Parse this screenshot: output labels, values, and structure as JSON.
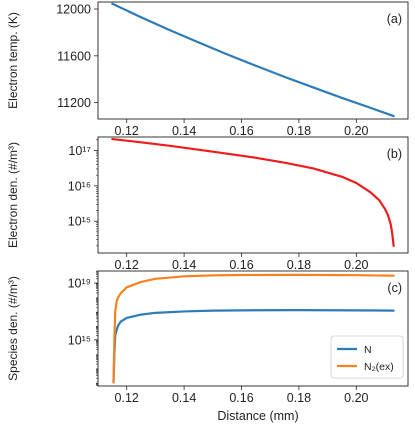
{
  "xlabel": "Distance (mm)",
  "chart_data": [
    {
      "type": "line",
      "panel_label": "(a)",
      "ylabel": "Electron temp. (K)",
      "yscale": "linear",
      "xlim": [
        0.11,
        0.218
      ],
      "ylim": [
        11060,
        12060
      ],
      "xticks": [
        0.12,
        0.14,
        0.16,
        0.18,
        0.2
      ],
      "xtick_labels": [
        "0.12",
        "0.14",
        "0.16",
        "0.18",
        "0.20"
      ],
      "yticks": [
        11200,
        11600,
        12000
      ],
      "ytick_labels": [
        "11200",
        "11600",
        "12000"
      ],
      "series": [
        {
          "color": "#2f7bb7",
          "x": [
            0.115,
            0.125,
            0.135,
            0.145,
            0.155,
            0.165,
            0.175,
            0.185,
            0.195,
            0.205,
            0.213
          ],
          "y": [
            12045,
            11930,
            11820,
            11715,
            11612,
            11515,
            11420,
            11330,
            11240,
            11155,
            11085
          ]
        }
      ]
    },
    {
      "type": "line",
      "panel_label": "(b)",
      "ylabel": "Electron den. (#/m³)",
      "yscale": "log",
      "xlim": [
        0.11,
        0.218
      ],
      "ylim": [
        14.1,
        17.38
      ],
      "xticks": [
        0.12,
        0.14,
        0.16,
        0.18,
        0.2
      ],
      "xtick_labels": [
        "0.12",
        "0.14",
        "0.16",
        "0.18",
        "0.20"
      ],
      "yticks": [
        15,
        16,
        17
      ],
      "ytick_labels": [
        "10¹⁵",
        "10¹⁶",
        "10¹⁷"
      ],
      "series": [
        {
          "color": "#ee1c1c",
          "x": [
            0.115,
            0.125,
            0.135,
            0.145,
            0.155,
            0.165,
            0.175,
            0.185,
            0.195,
            0.2,
            0.205,
            0.208,
            0.21,
            0.211,
            0.212,
            0.2125,
            0.213
          ],
          "y": [
            2.1e+17,
            1.7e+17,
            1.35e+17,
            1.05e+17,
            8.1e+16,
            6.2e+16,
            4.5e+16,
            3.1e+16,
            1.8e+16,
            1.2e+16,
            6500000000000000.0,
            3900000000000000.0,
            2200000000000000.0,
            1500000000000000.0,
            800000000000000.0,
            450000000000000.0,
            200000000000000.0
          ]
        }
      ]
    },
    {
      "type": "line",
      "panel_label": "(c)",
      "ylabel": "Species den. (#/m³)",
      "yscale": "log",
      "xlim": [
        0.11,
        0.218
      ],
      "ylim": [
        11.75,
        19.85
      ],
      "xticks": [
        0.12,
        0.14,
        0.16,
        0.18,
        0.2
      ],
      "xtick_labels": [
        "0.12",
        "0.14",
        "0.16",
        "0.18",
        "0.20"
      ],
      "yticks": [
        15,
        19
      ],
      "ytick_labels": [
        "10¹⁵",
        "10¹⁹"
      ],
      "legend": "lower-right",
      "series": [
        {
          "name": "N",
          "color": "#2f7bb7",
          "x": [
            0.1154,
            0.1157,
            0.116,
            0.1165,
            0.117,
            0.118,
            0.12,
            0.125,
            0.13,
            0.14,
            0.15,
            0.16,
            0.18,
            0.2,
            0.213
          ],
          "y": [
            1000000000000.0,
            100000000000000.0,
            2000000000000000.0,
            5000000000000000.0,
            1e+16,
            2e+16,
            3.5e+16,
            6e+16,
            8e+16,
            1e+17,
            1.15e+17,
            1.2e+17,
            1.25e+17,
            1.2e+17,
            1.15e+17
          ]
        },
        {
          "name": "N₂(ex)",
          "color": "#f58220",
          "x": [
            0.1154,
            0.1157,
            0.116,
            0.1165,
            0.117,
            0.118,
            0.12,
            0.125,
            0.13,
            0.14,
            0.15,
            0.16,
            0.18,
            0.2,
            0.213
          ],
          "y": [
            1000000000000.0,
            1000000000000000.0,
            1e+17,
            5e+17,
            1e+18,
            2e+18,
            5e+18,
            1.2e+19,
            2e+19,
            3e+19,
            3.5e+19,
            3.7e+19,
            3.8e+19,
            3.6e+19,
            3.3e+19
          ]
        }
      ]
    }
  ]
}
